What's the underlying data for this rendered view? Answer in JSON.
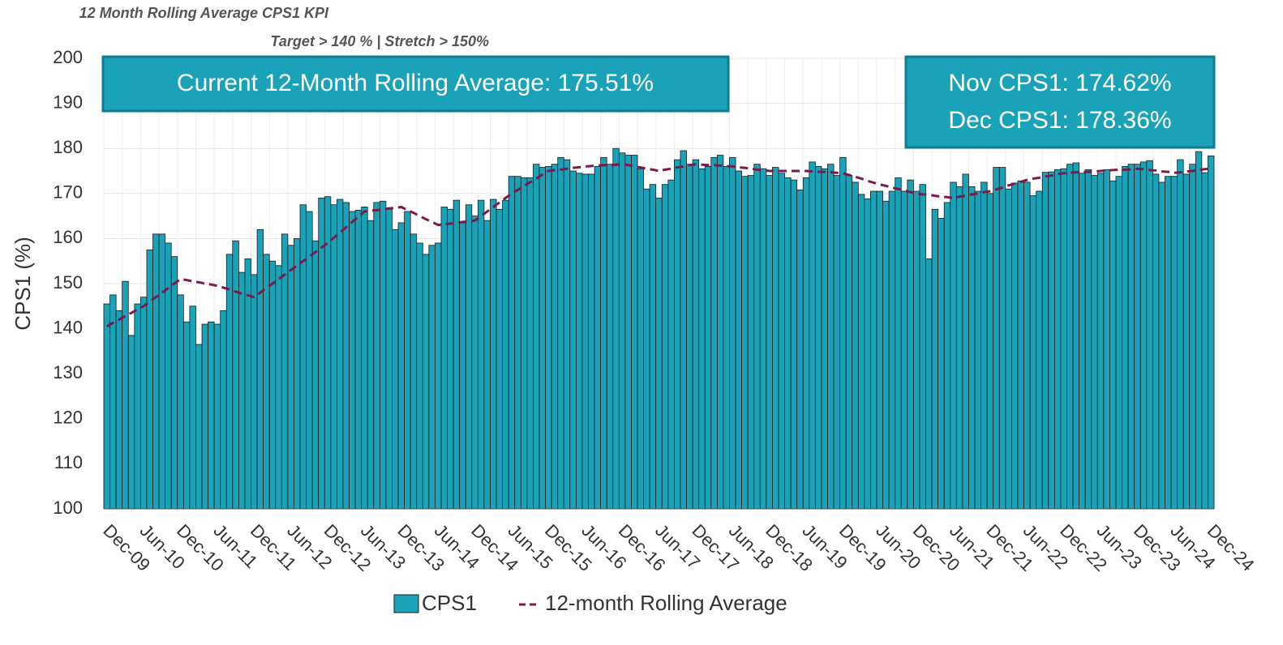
{
  "chart_data": {
    "type": "bar",
    "title": "12 Month Rolling Average CPS1 KPI",
    "subtitle": "Target > 140 % | Stretch > 150%",
    "y_label": "CPS1 (%)",
    "annotations": [
      "Current 12-Month Rolling Average: 175.51%",
      "Nov CPS1: 174.62%",
      "Dec CPS1: 178.36%"
    ],
    "categories": [
      "Dec-09",
      null,
      null,
      null,
      null,
      null,
      "Jun-10",
      null,
      null,
      null,
      null,
      null,
      "Dec-10",
      null,
      null,
      null,
      null,
      null,
      "Jun-11",
      null,
      null,
      null,
      null,
      null,
      "Dec-11",
      null,
      null,
      null,
      null,
      null,
      "Jun-12",
      null,
      null,
      null,
      null,
      null,
      "Dec-12",
      null,
      null,
      null,
      null,
      null,
      "Jun-13",
      null,
      null,
      null,
      null,
      null,
      "Dec-13",
      null,
      null,
      null,
      null,
      null,
      "Jun-14",
      null,
      null,
      null,
      null,
      null,
      "Dec-14",
      null,
      null,
      null,
      null,
      null,
      "Jun-15",
      null,
      null,
      null,
      null,
      null,
      "Dec-15",
      null,
      null,
      null,
      null,
      null,
      "Jun-16",
      null,
      null,
      null,
      null,
      null,
      "Dec-16",
      null,
      null,
      null,
      null,
      null,
      "Jun-17",
      null,
      null,
      null,
      null,
      null,
      "Dec-17",
      null,
      null,
      null,
      null,
      null,
      "Jun-18",
      null,
      null,
      null,
      null,
      null,
      "Dec-18",
      null,
      null,
      null,
      null,
      null,
      "Jun-19",
      null,
      null,
      null,
      null,
      null,
      "Dec-19",
      null,
      null,
      null,
      null,
      null,
      "Jun-20",
      null,
      null,
      null,
      null,
      null,
      "Dec-20",
      null,
      null,
      null,
      null,
      null,
      "Jun-21",
      null,
      null,
      null,
      null,
      null,
      "Dec-21",
      null,
      null,
      null,
      null,
      null,
      "Jun-22",
      null,
      null,
      null,
      null,
      null,
      "Dec-22",
      null,
      null,
      null,
      null,
      null,
      "Jun-23",
      null,
      null,
      null,
      null,
      null,
      "Dec-23",
      null,
      null,
      null,
      null,
      null,
      "Jun-24",
      null,
      null,
      null,
      null,
      null,
      "Dec-24"
    ],
    "series": [
      {
        "name": "CPS1",
        "type": "bar",
        "color": "#1aa3b8",
        "values": [
          145.5,
          147.5,
          144,
          150.5,
          138.5,
          145.5,
          147,
          157.5,
          161,
          161,
          159,
          156,
          147.5,
          141.5,
          145,
          136.5,
          141,
          141.5,
          141,
          144,
          156.5,
          159.5,
          152.5,
          155.5,
          152,
          162,
          156.5,
          155,
          154,
          161,
          158.5,
          160,
          167.5,
          166,
          159.5,
          169,
          169.3,
          167.5,
          168.7,
          168,
          166,
          166.3,
          167,
          164,
          168,
          168.3,
          166.5,
          162,
          163.5,
          166,
          161,
          159,
          156.5,
          158.5,
          159,
          167,
          166.5,
          168.5,
          163.5,
          167.5,
          165,
          168.5,
          164,
          168.7,
          166.5,
          168.5,
          173.8,
          173.8,
          173.5,
          173.5,
          176.5,
          175.8,
          176,
          176.5,
          178,
          177.5,
          175,
          174.5,
          174.3,
          174.3,
          176,
          178,
          176.5,
          180,
          179,
          178.5,
          178.5,
          175.5,
          171,
          172,
          169,
          172,
          173,
          177.5,
          179.5,
          176.5,
          177.5,
          175.5,
          176,
          178,
          178.5,
          176,
          178,
          175,
          173.8,
          174,
          176.5,
          175.5,
          174,
          175.8,
          174.5,
          173.5,
          173,
          170.8,
          173.5,
          177,
          176,
          175.5,
          176.5,
          174,
          178,
          174,
          172.5,
          169.8,
          168.8,
          170.5,
          170.5,
          168.3,
          170.5,
          173.5,
          170.5,
          173,
          170.5,
          172,
          155.5,
          166.5,
          164.5,
          168,
          172.5,
          171.5,
          174.3,
          171.5,
          170.5,
          172.5,
          170,
          175.8,
          175.8,
          171,
          172.3,
          172.8,
          172.5,
          169.5,
          170.5,
          174.7,
          174.8,
          175.3,
          175.5,
          176.5,
          176.8,
          174.5,
          175.3,
          174,
          174.5,
          175.3,
          172.8,
          173.8,
          176,
          176.5,
          176.5,
          177,
          177.3,
          174.3,
          172.5,
          173.8,
          173.8,
          177.5,
          174.3,
          176.5,
          179.3,
          174.62,
          178.36
        ]
      },
      {
        "name": "12-month Rolling Average",
        "type": "line",
        "color": "#7b1a4b",
        "values": [
          140.5,
          141.3,
          142,
          142.8,
          143.5,
          144.3,
          145,
          146,
          147,
          148,
          149,
          150,
          151,
          150.8,
          150.5,
          150.3,
          150,
          149.8,
          149.5,
          149.1,
          148.7,
          148.2,
          147.8,
          147.4,
          147,
          148,
          149,
          150,
          151,
          152,
          153,
          154,
          155,
          156,
          157,
          158,
          159,
          160.2,
          161.3,
          162.5,
          163.7,
          164.8,
          166,
          166.2,
          166.3,
          166.5,
          166.7,
          166.8,
          167,
          166.3,
          165.7,
          165,
          164.3,
          163.7,
          163,
          163.2,
          163.3,
          163.5,
          163.7,
          163.8,
          164,
          165,
          166,
          167,
          168,
          169,
          170,
          170.8,
          171.7,
          172.5,
          173.3,
          174.2,
          175,
          175.2,
          175.3,
          175.5,
          175.7,
          175.8,
          176,
          176.1,
          176.2,
          176.3,
          176.3,
          176.4,
          176.5,
          176.3,
          176,
          175.8,
          175.5,
          175.3,
          175,
          175.3,
          175.5,
          175.8,
          176,
          176.3,
          176.5,
          176.4,
          176.3,
          176.3,
          176.2,
          176.1,
          176,
          175.8,
          175.7,
          175.5,
          175.3,
          175.2,
          175,
          175,
          175,
          175,
          175,
          175,
          175,
          174.9,
          174.8,
          174.8,
          174.7,
          174.6,
          174.5,
          174.1,
          173.7,
          173.3,
          172.8,
          172.4,
          172,
          171.7,
          171.3,
          171,
          170.7,
          170.3,
          170,
          169.8,
          169.7,
          169.5,
          169.3,
          169.2,
          169,
          169.3,
          169.5,
          169.8,
          170,
          170.3,
          170.5,
          170.9,
          171.3,
          171.8,
          172.2,
          172.6,
          173,
          173.3,
          173.5,
          173.8,
          174,
          174.3,
          174.5,
          174.6,
          174.7,
          174.8,
          174.8,
          174.9,
          175,
          175.1,
          175.2,
          175.3,
          175.3,
          175.4,
          175.5,
          175.4,
          175.2,
          175.1,
          174.9,
          174.8,
          174.6,
          174.7,
          174.9,
          175,
          175.2,
          175.4,
          175.51
        ]
      }
    ],
    "ylim": [
      100,
      200
    ],
    "yticks": [
      100,
      110,
      120,
      130,
      140,
      150,
      160,
      170,
      180,
      190,
      200
    ],
    "grid": true,
    "legend": "bottom"
  }
}
